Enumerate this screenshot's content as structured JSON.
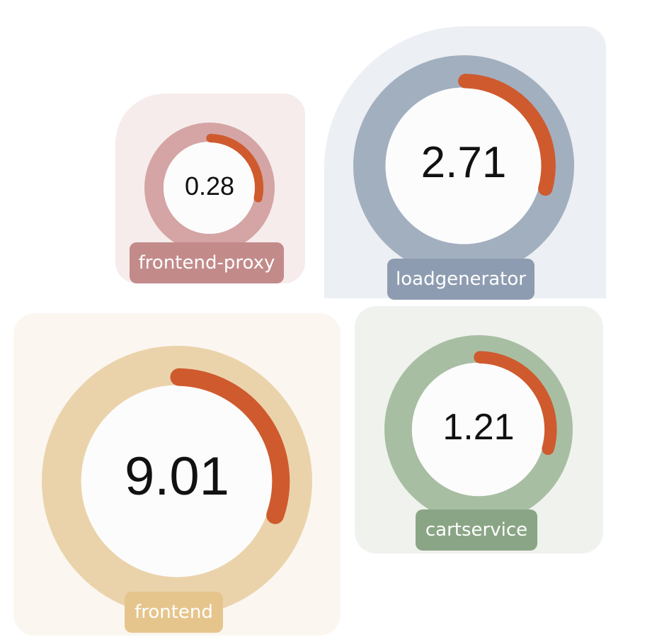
{
  "services": {
    "frontend_proxy": {
      "name": "frontend-proxy",
      "value": "0.28",
      "fraction": 0.28,
      "panel_color": "#f6ecec",
      "ring_color": "#d4a5a4",
      "label_color": "#c28b8a"
    },
    "loadgenerator": {
      "name": "loadgenerator",
      "value": "2.71",
      "fraction": 0.29,
      "panel_color": "#eceff3",
      "ring_color": "#a2afbf",
      "label_color": "#8d9cb0"
    },
    "frontend": {
      "name": "frontend",
      "value": "9.01",
      "fraction": 0.3,
      "panel_color": "#fbf6f0",
      "ring_color": "#ead3ab",
      "label_color": "#e6c58d"
    },
    "cartservice": {
      "name": "cartservice",
      "value": "1.21",
      "fraction": 0.29,
      "panel_color": "#f0f2ee",
      "ring_color": "#a8bea3",
      "label_color": "#8aa585"
    }
  },
  "colors": {
    "arc": "#cf5a2e",
    "inner": "#fcfcfc"
  }
}
